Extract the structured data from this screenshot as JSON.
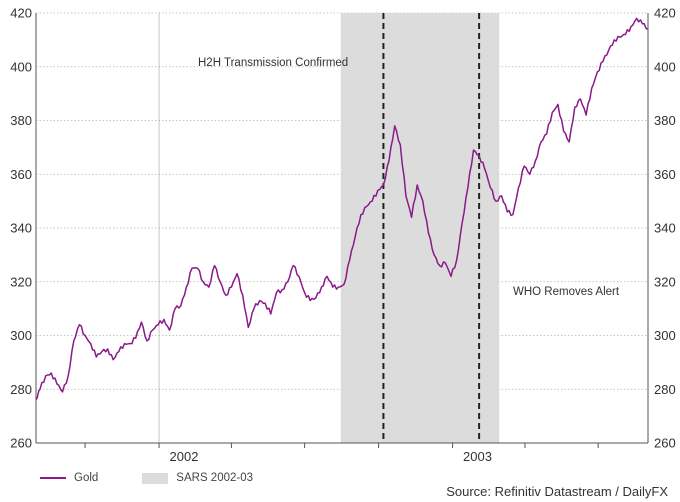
{
  "chart_data": {
    "type": "line",
    "title": "",
    "xlabel": "",
    "ylabel": "",
    "ylim": [
      260,
      420
    ],
    "yticks": [
      260,
      280,
      300,
      320,
      340,
      360,
      380,
      400,
      420
    ],
    "xlim": [
      "2001-08-01",
      "2003-09-01"
    ],
    "xtick_labels": [
      {
        "label": "2002",
        "date": "2002-02-01"
      },
      {
        "label": "2003",
        "date": "2003-02-01"
      }
    ],
    "grid": true,
    "series": [
      {
        "name": "Gold",
        "color": "#8a1a8a",
        "points": [
          [
            "2001-08-01",
            276
          ],
          [
            "2001-08-06",
            280
          ],
          [
            "2001-08-13",
            285
          ],
          [
            "2001-08-20",
            286
          ],
          [
            "2001-08-27",
            282
          ],
          [
            "2001-09-03",
            279
          ],
          [
            "2001-09-10",
            285
          ],
          [
            "2001-09-17",
            298
          ],
          [
            "2001-09-24",
            304
          ],
          [
            "2001-10-01",
            300
          ],
          [
            "2001-10-08",
            297
          ],
          [
            "2001-10-15",
            292
          ],
          [
            "2001-10-22",
            294
          ],
          [
            "2001-10-29",
            295
          ],
          [
            "2001-11-05",
            291
          ],
          [
            "2001-11-12",
            294
          ],
          [
            "2001-11-19",
            297
          ],
          [
            "2001-11-26",
            297
          ],
          [
            "2001-12-03",
            299
          ],
          [
            "2001-12-10",
            305
          ],
          [
            "2001-12-17",
            298
          ],
          [
            "2001-12-24",
            302
          ],
          [
            "2001-12-31",
            304
          ],
          [
            "2002-01-07",
            306
          ],
          [
            "2002-01-14",
            302
          ],
          [
            "2002-01-21",
            310
          ],
          [
            "2002-01-28",
            311
          ],
          [
            "2002-02-04",
            318
          ],
          [
            "2002-02-11",
            325
          ],
          [
            "2002-02-18",
            325
          ],
          [
            "2002-02-25",
            320
          ],
          [
            "2002-03-04",
            318
          ],
          [
            "2002-03-11",
            326
          ],
          [
            "2002-03-18",
            320
          ],
          [
            "2002-03-25",
            315
          ],
          [
            "2002-04-01",
            318
          ],
          [
            "2002-04-08",
            323
          ],
          [
            "2002-04-15",
            315
          ],
          [
            "2002-04-22",
            303
          ],
          [
            "2002-04-29",
            310
          ],
          [
            "2002-05-06",
            313
          ],
          [
            "2002-05-13",
            312
          ],
          [
            "2002-05-20",
            308
          ],
          [
            "2002-05-27",
            316
          ],
          [
            "2002-06-03",
            317
          ],
          [
            "2002-06-10",
            320
          ],
          [
            "2002-06-17",
            326
          ],
          [
            "2002-06-24",
            322
          ],
          [
            "2002-07-01",
            316
          ],
          [
            "2002-07-08",
            313
          ],
          [
            "2002-07-15",
            314
          ],
          [
            "2002-07-22",
            318
          ],
          [
            "2002-07-29",
            322
          ],
          [
            "2002-08-05",
            318
          ],
          [
            "2002-08-12",
            318
          ],
          [
            "2002-08-19",
            319
          ],
          [
            "2002-08-26",
            328
          ],
          [
            "2002-09-02",
            337
          ],
          [
            "2002-09-09",
            345
          ],
          [
            "2002-09-16",
            348
          ],
          [
            "2002-09-23",
            350
          ],
          [
            "2002-09-30",
            354
          ],
          [
            "2002-10-07",
            356
          ],
          [
            "2002-10-14",
            365
          ],
          [
            "2002-10-21",
            378
          ],
          [
            "2002-10-28",
            371
          ],
          [
            "2002-11-04",
            352
          ],
          [
            "2002-11-11",
            344
          ],
          [
            "2002-11-18",
            356
          ],
          [
            "2002-11-25",
            350
          ],
          [
            "2002-12-02",
            338
          ],
          [
            "2002-12-09",
            330
          ],
          [
            "2002-12-16",
            326
          ],
          [
            "2002-12-23",
            327
          ],
          [
            "2002-12-30",
            322
          ],
          [
            "2003-01-06",
            328
          ],
          [
            "2003-01-13",
            342
          ],
          [
            "2003-01-20",
            355
          ],
          [
            "2003-01-27",
            369
          ],
          [
            "2003-02-03",
            367
          ],
          [
            "2003-02-10",
            362
          ],
          [
            "2003-02-17",
            355
          ],
          [
            "2003-02-24",
            350
          ],
          [
            "2003-03-03",
            352
          ],
          [
            "2003-03-10",
            346
          ],
          [
            "2003-03-17",
            345
          ],
          [
            "2003-03-24",
            355
          ],
          [
            "2003-03-31",
            363
          ],
          [
            "2003-04-07",
            360
          ],
          [
            "2003-04-14",
            365
          ],
          [
            "2003-04-21",
            372
          ],
          [
            "2003-04-28",
            375
          ],
          [
            "2003-05-05",
            383
          ],
          [
            "2003-05-12",
            386
          ],
          [
            "2003-05-19",
            376
          ],
          [
            "2003-05-26",
            372
          ],
          [
            "2003-06-02",
            385
          ],
          [
            "2003-06-09",
            388
          ],
          [
            "2003-06-16",
            382
          ],
          [
            "2003-06-23",
            392
          ],
          [
            "2003-06-30",
            398
          ],
          [
            "2003-07-07",
            402
          ],
          [
            "2003-07-14",
            406
          ],
          [
            "2003-07-21",
            410
          ],
          [
            "2003-07-28",
            411
          ],
          [
            "2003-08-04",
            412
          ],
          [
            "2003-08-11",
            415
          ],
          [
            "2003-08-18",
            418
          ],
          [
            "2003-08-25",
            416
          ],
          [
            "2003-09-01",
            414
          ]
        ]
      }
    ],
    "shaded_regions": [
      {
        "name": "SARS 2002-03",
        "start": "2002-08-15",
        "end": "2003-02-28",
        "color": "#dcdcdc"
      }
    ],
    "vertical_lines": [
      {
        "date": "2002-10-07",
        "style": "dashed",
        "label": "H2H Transmission Confirmed"
      },
      {
        "date": "2003-02-03",
        "style": "dashed",
        "label": "WHO Removes Alert"
      }
    ],
    "legend": {
      "placement": "bottom-left"
    },
    "source": "Source: Refinitiv Datastream / DailyFX"
  }
}
